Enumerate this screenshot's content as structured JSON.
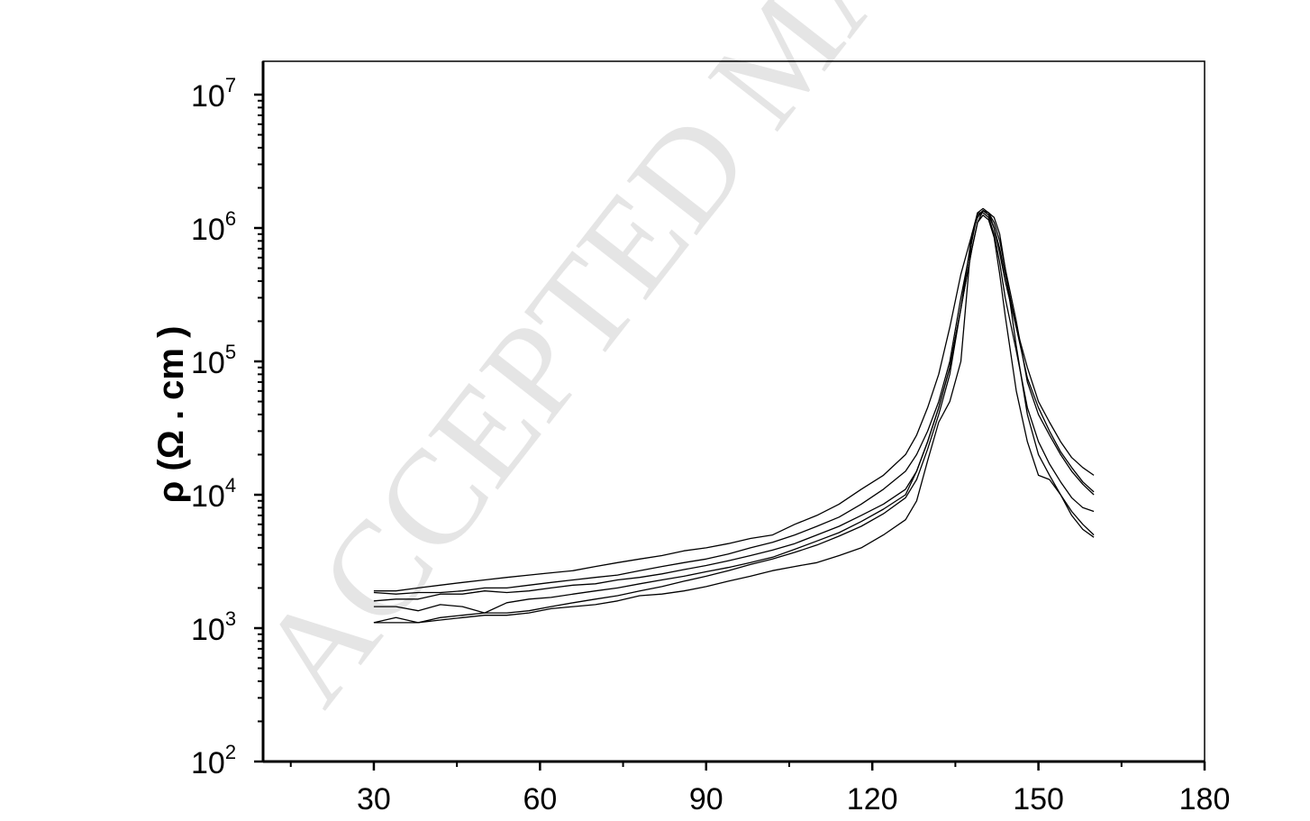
{
  "watermark": "ACCEPTED MA",
  "chart_data": {
    "type": "line",
    "title": "",
    "xlabel": "",
    "ylabel": "ρ (Ω . cm )",
    "xlim": [
      10,
      180
    ],
    "ylim_log10": [
      2,
      7.25
    ],
    "y_scale": "log",
    "x_ticks": [
      30,
      60,
      90,
      120,
      150,
      180
    ],
    "y_ticks": [
      {
        "base": "10",
        "exp": "2",
        "value": 100
      },
      {
        "base": "10",
        "exp": "3",
        "value": 1000
      },
      {
        "base": "10",
        "exp": "4",
        "value": 10000
      },
      {
        "base": "10",
        "exp": "5",
        "value": 100000
      },
      {
        "base": "10",
        "exp": "6",
        "value": 1000000
      },
      {
        "base": "10",
        "exp": "7",
        "value": 10000000
      }
    ],
    "grid": false,
    "legend": "none",
    "series": [
      {
        "x": [
          30,
          34,
          38,
          42,
          46,
          50,
          54,
          58,
          62,
          66,
          70,
          74,
          78,
          82,
          86,
          90,
          94,
          98,
          102,
          106,
          110,
          114,
          118,
          122,
          126,
          128,
          130,
          132,
          134,
          136,
          138,
          139,
          140,
          141,
          142,
          143,
          144,
          146,
          148,
          150,
          152,
          154,
          156,
          158,
          160
        ],
        "values": [
          1900,
          1900,
          2000,
          2100,
          2200,
          2300,
          2400,
          2500,
          2600,
          2700,
          2900,
          3100,
          3300,
          3500,
          3800,
          4000,
          4300,
          4700,
          5000,
          6000,
          7000,
          8500,
          11000,
          14000,
          20000,
          28000,
          45000,
          80000,
          180000,
          450000,
          900000,
          1200000,
          1350000,
          1300000,
          1000000,
          650000,
          400000,
          180000,
          90000,
          50000,
          35000,
          25000,
          19000,
          16000,
          14000
        ]
      },
      {
        "x": [
          30,
          34,
          38,
          42,
          46,
          50,
          54,
          58,
          62,
          66,
          70,
          74,
          78,
          82,
          86,
          90,
          94,
          98,
          102,
          106,
          110,
          114,
          118,
          122,
          126,
          128,
          130,
          132,
          134,
          136,
          138,
          139,
          140,
          141,
          142,
          143,
          144,
          146,
          148,
          150,
          152,
          154,
          156,
          158,
          160
        ],
        "values": [
          1850,
          1800,
          1850,
          1850,
          1900,
          2000,
          2000,
          2100,
          2200,
          2300,
          2400,
          2500,
          2700,
          2900,
          3100,
          3300,
          3600,
          4000,
          4400,
          5000,
          5800,
          6800,
          8500,
          11000,
          15000,
          20000,
          30000,
          50000,
          100000,
          300000,
          800000,
          1300000,
          1400000,
          1300000,
          1100000,
          800000,
          500000,
          200000,
          70000,
          40000,
          28000,
          20000,
          15000,
          12000,
          10000
        ]
      },
      {
        "x": [
          30,
          34,
          38,
          42,
          46,
          50,
          54,
          58,
          62,
          66,
          70,
          74,
          78,
          82,
          86,
          90,
          94,
          98,
          102,
          106,
          110,
          114,
          118,
          122,
          126,
          128,
          130,
          132,
          134,
          136,
          138,
          139,
          140,
          141,
          142,
          143,
          144,
          146,
          148,
          150,
          152,
          154,
          156,
          158,
          160
        ],
        "values": [
          1600,
          1650,
          1650,
          1800,
          1800,
          1900,
          1850,
          1900,
          2000,
          2100,
          2150,
          2300,
          2400,
          2550,
          2750,
          2950,
          3200,
          3500,
          3850,
          4300,
          5000,
          5800,
          7000,
          8500,
          11000,
          15000,
          25000,
          45000,
          90000,
          250000,
          700000,
          1100000,
          1350000,
          1250000,
          1000000,
          700000,
          450000,
          180000,
          75000,
          45000,
          30000,
          21000,
          16000,
          12500,
          10500
        ]
      },
      {
        "x": [
          30,
          34,
          38,
          42,
          46,
          50,
          54,
          58,
          62,
          66,
          70,
          74,
          78,
          82,
          86,
          90,
          94,
          98,
          102,
          106,
          110,
          114,
          118,
          122,
          126,
          128,
          130,
          132,
          134,
          136,
          138,
          139,
          140,
          141,
          142,
          143,
          144,
          146,
          148,
          150,
          152,
          154,
          156,
          158,
          160
        ],
        "values": [
          1450,
          1450,
          1350,
          1500,
          1450,
          1300,
          1550,
          1650,
          1700,
          1800,
          1900,
          2000,
          2150,
          2300,
          2450,
          2650,
          2850,
          3100,
          3400,
          3900,
          4500,
          5200,
          6300,
          7800,
          10000,
          15000,
          25000,
          45000,
          90000,
          250000,
          900000,
          1300000,
          1300000,
          1200000,
          900000,
          550000,
          300000,
          120000,
          45000,
          25000,
          17000,
          12500,
          9500,
          8000,
          7500
        ]
      },
      {
        "x": [
          30,
          34,
          38,
          42,
          46,
          50,
          54,
          58,
          62,
          66,
          70,
          74,
          78,
          82,
          86,
          90,
          94,
          98,
          102,
          106,
          110,
          114,
          118,
          122,
          126,
          128,
          130,
          132,
          134,
          136,
          138,
          139,
          140,
          141,
          142,
          143,
          144,
          146,
          148,
          150,
          152,
          154,
          156,
          158,
          160
        ],
        "values": [
          1100,
          1200,
          1100,
          1200,
          1250,
          1300,
          1300,
          1350,
          1450,
          1550,
          1650,
          1750,
          1900,
          2050,
          2250,
          2450,
          2700,
          3000,
          3300,
          3700,
          4200,
          4900,
          5800,
          7200,
          9500,
          13000,
          22000,
          40000,
          80000,
          250000,
          700000,
          1100000,
          1250000,
          1150000,
          850000,
          450000,
          220000,
          60000,
          25000,
          14000,
          13000,
          10000,
          7500,
          6000,
          5000
        ]
      },
      {
        "x": [
          30,
          34,
          38,
          42,
          46,
          50,
          54,
          58,
          62,
          66,
          70,
          74,
          78,
          82,
          86,
          90,
          94,
          98,
          102,
          106,
          110,
          114,
          118,
          122,
          126,
          128,
          130,
          132,
          134,
          136,
          138,
          139,
          140,
          141,
          142,
          143,
          144,
          146,
          148,
          150,
          152,
          154,
          156,
          158,
          160
        ],
        "values": [
          1100,
          1100,
          1100,
          1150,
          1200,
          1250,
          1250,
          1300,
          1400,
          1450,
          1500,
          1600,
          1750,
          1800,
          1900,
          2050,
          2250,
          2450,
          2700,
          2900,
          3100,
          3500,
          4000,
          5000,
          6500,
          9000,
          18000,
          35000,
          50000,
          100000,
          900000,
          1250000,
          1350000,
          1300000,
          1200000,
          900000,
          500000,
          130000,
          40000,
          20000,
          14000,
          10000,
          7000,
          5500,
          4800
        ]
      }
    ]
  }
}
